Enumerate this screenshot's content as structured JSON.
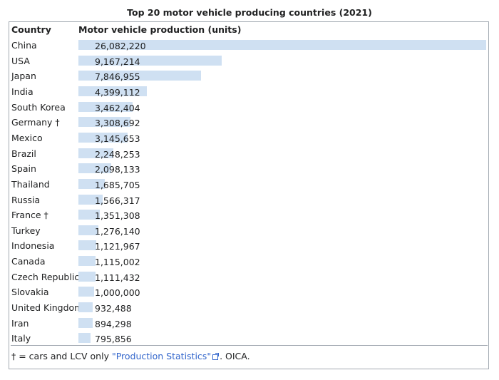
{
  "caption": "Top 20 motor vehicle producing countries (2021)",
  "header": {
    "country": "Country",
    "production": "Motor vehicle production (units)"
  },
  "chart_data": {
    "type": "bar",
    "title": "Top 20 motor vehicle producing countries (2021)",
    "xlabel": "Country",
    "ylabel": "Motor vehicle production (units)",
    "categories": [
      "China",
      "USA",
      "Japan",
      "India",
      "South Korea",
      "Germany †",
      "Mexico",
      "Brazil",
      "Spain",
      "Thailand",
      "Russia",
      "France †",
      "Turkey",
      "Indonesia",
      "Canada",
      "Czech Republic",
      "Slovakia",
      "United Kingdom",
      "Iran",
      "Italy"
    ],
    "values": [
      26082220,
      9167214,
      7846955,
      4399112,
      3462404,
      3308692,
      3145653,
      2248253,
      2098133,
      1685705,
      1566317,
      1351308,
      1276140,
      1121967,
      1115002,
      1111432,
      1000000,
      932488,
      894298,
      795856
    ],
    "labels": [
      "26,082,220",
      "9,167,214",
      "7,846,955",
      "4,399,112",
      "3,462,404",
      "3,308,692",
      "3,145,653",
      "2,248,253",
      "2,098,133",
      "1,685,705",
      "1,566,317",
      "1,351,308",
      "1,276,140",
      "1,121,967",
      "1,115,002",
      "1,111,432",
      "1,000,000",
      "932,488",
      "894,298",
      "795,856"
    ],
    "bar_color": "#cfe0f2"
  },
  "footnote": {
    "prefix": "† = cars and LCV only ",
    "link": "\"Production Statistics\"",
    "suffix": ". OICA."
  }
}
